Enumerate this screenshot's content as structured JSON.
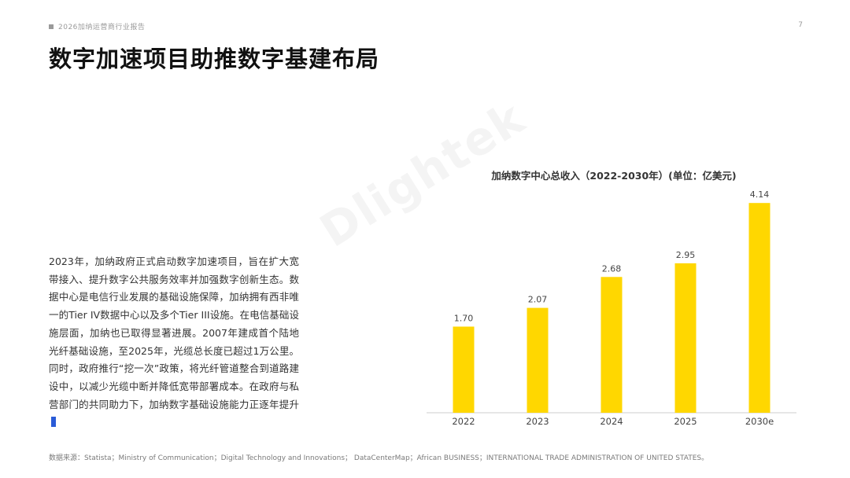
{
  "header": {
    "report_label": "2026加纳运营商行业报告",
    "page_number": "7"
  },
  "page_title": "数字加速项目助推数字基建布局",
  "watermark": "Dlightek",
  "body_text": "2023年，加纳政府正式启动数字加速项目，旨在扩大宽带接入、提升数字公共服务效率并加强数字创新生态。数据中心是电信行业发展的基础设施保障，加纳拥有西非唯一的Tier IV数据中心以及多个Tier III设施。在电信基础设施层面，加纳也已取得显著进展。2007年建成首个陆地光纤基础设施，至2025年，光缆总长度已超过1万公里。同时，政府推行“挖一次”政策，将光纤管道整合到道路建设中，以减少光缆中断并降低宽带部署成本。在政府与私营部门的共同助力下，加纳数字基础设施能力正逐年提升",
  "source_note": "数据来源：Statista；Ministry of Communication；Digital Technology and Innovations； DataCenterMap；African BUSINESS；INTERNATIONAL TRADE ADMINISTRATION OF UNITED STATES。",
  "colors": {
    "bar": "#FFD700",
    "axis": "#cccccc"
  },
  "chart_data": {
    "type": "bar",
    "title": "加纳数字中心总收入（2022-2030年）(单位：亿美元)",
    "categories": [
      "2022",
      "2023",
      "2024",
      "2025",
      "2030e"
    ],
    "values": [
      1.7,
      2.07,
      2.68,
      2.95,
      4.14
    ],
    "value_labels": [
      "1.70",
      "2.07",
      "2.68",
      "2.95",
      "4.14"
    ],
    "xlabel": "",
    "ylabel": "",
    "ylim": [
      0,
      4.5
    ],
    "grid": false,
    "legend": "none"
  }
}
